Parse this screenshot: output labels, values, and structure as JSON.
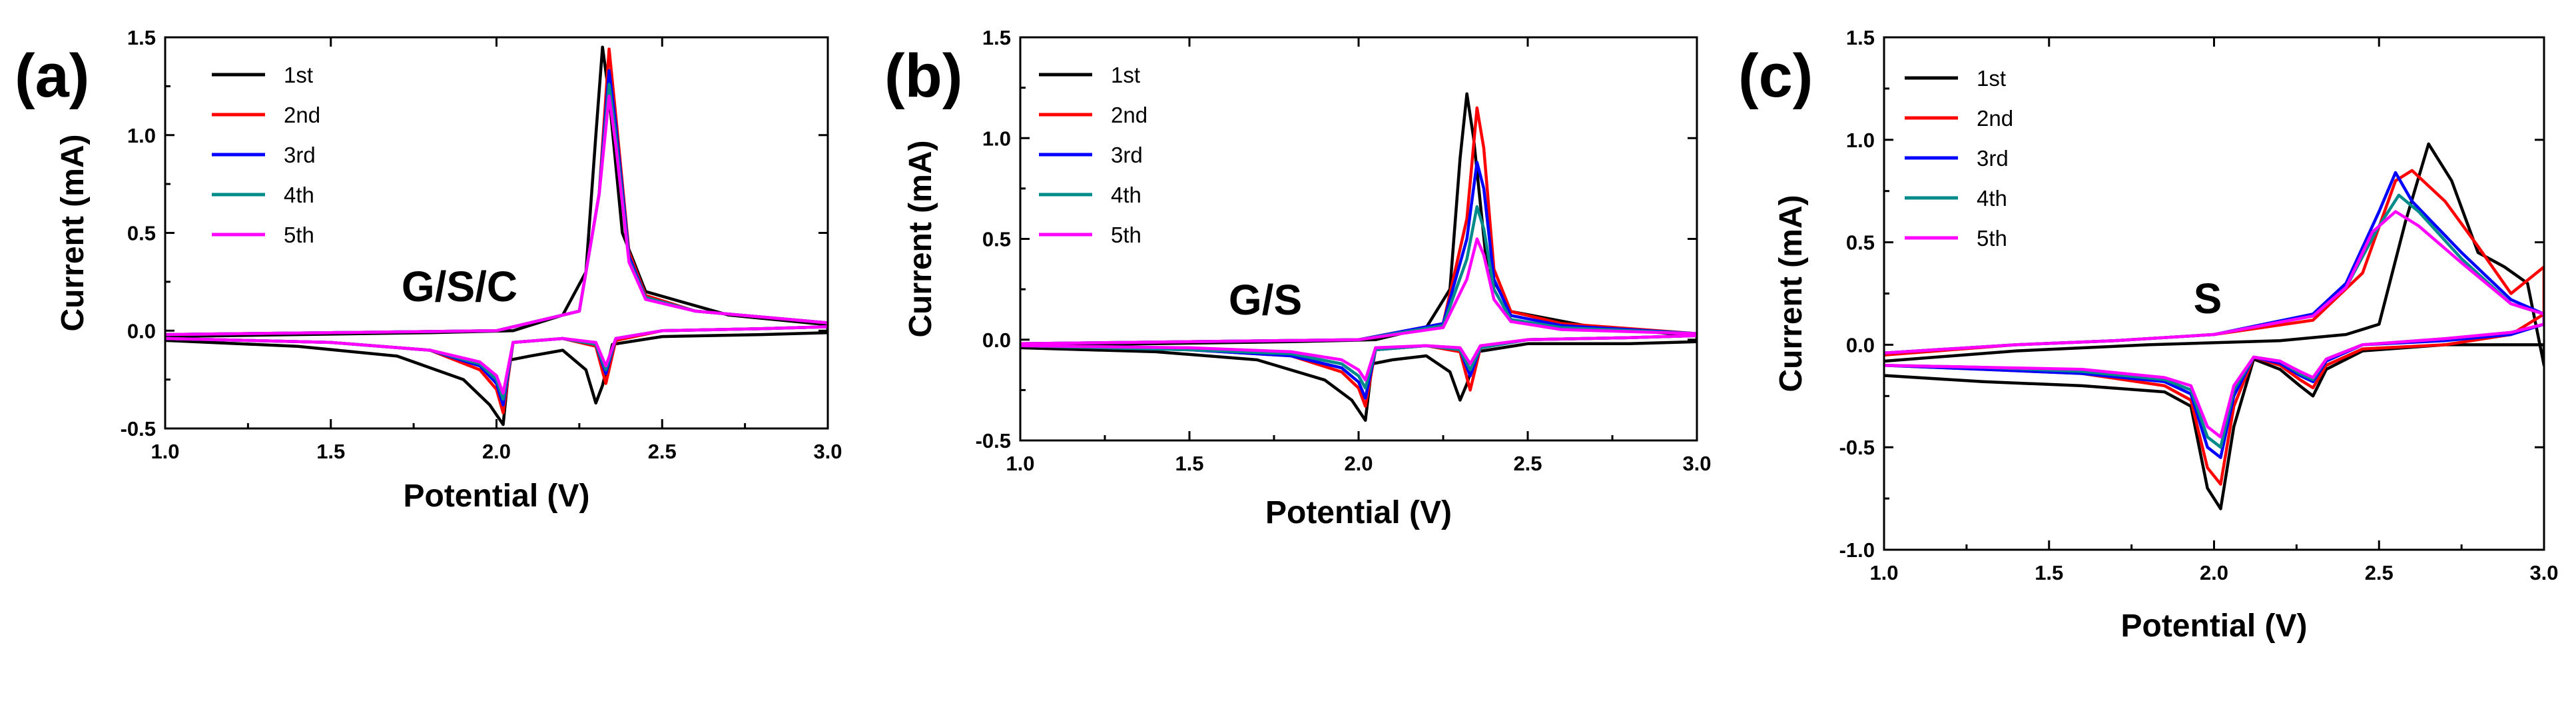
{
  "chart_data": [
    {
      "type": "line",
      "panel_label": "(a)",
      "inset_label": "G/S/C",
      "xlabel": "Potential (V)",
      "ylabel": "Current (mA)",
      "xlim": [
        1.0,
        3.0
      ],
      "ylim": [
        -0.5,
        1.5
      ],
      "xticks": [
        "1.0",
        "1.5",
        "2.0",
        "2.5",
        "3.0"
      ],
      "yticks": [
        "-0.5",
        "0.0",
        "0.5",
        "1.0",
        "1.5"
      ],
      "legend": [
        "1st",
        "2nd",
        "3rd",
        "4th",
        "5th"
      ],
      "legend_position": "top-left",
      "series": [
        {
          "name": "1st",
          "color": "#000000",
          "x": [
            1.0,
            1.4,
            1.7,
            1.9,
            1.98,
            2.02,
            2.04,
            2.1,
            2.2,
            2.27,
            2.3,
            2.32,
            2.35,
            2.5,
            2.8,
            3.0,
            3.0,
            2.7,
            2.45,
            2.38,
            2.34,
            2.32,
            2.3,
            2.27,
            2.2,
            2.05,
            1.8,
            1.4,
            1.0
          ],
          "y": [
            -0.05,
            -0.08,
            -0.13,
            -0.25,
            -0.38,
            -0.48,
            -0.15,
            -0.13,
            -0.1,
            -0.2,
            -0.37,
            -0.28,
            -0.07,
            -0.03,
            -0.02,
            -0.01,
            0.03,
            0.08,
            0.2,
            0.5,
            1.2,
            1.45,
            1.0,
            0.3,
            0.08,
            0.0,
            -0.01,
            -0.02,
            -0.03
          ]
        },
        {
          "name": "2nd",
          "color": "#ff0000",
          "x": [
            1.0,
            1.5,
            1.8,
            1.95,
            2.0,
            2.02,
            2.05,
            2.2,
            2.3,
            2.33,
            2.36,
            2.5,
            2.8,
            3.0,
            3.0,
            2.6,
            2.45,
            2.4,
            2.36,
            2.34,
            2.31,
            2.25,
            2.0,
            1.5,
            1.0
          ],
          "y": [
            -0.04,
            -0.06,
            -0.1,
            -0.2,
            -0.3,
            -0.42,
            -0.06,
            -0.04,
            -0.08,
            -0.27,
            -0.05,
            0.0,
            0.01,
            0.02,
            0.04,
            0.1,
            0.18,
            0.4,
            1.1,
            1.44,
            0.7,
            0.1,
            0.0,
            -0.01,
            -0.02
          ]
        },
        {
          "name": "3rd",
          "color": "#0000ff",
          "x": [
            1.0,
            1.5,
            1.8,
            1.95,
            2.0,
            2.02,
            2.05,
            2.2,
            2.3,
            2.33,
            2.36,
            2.5,
            2.8,
            3.0,
            3.0,
            2.6,
            2.45,
            2.4,
            2.36,
            2.34,
            2.31,
            2.25,
            2.0,
            1.5,
            1.0
          ],
          "y": [
            -0.04,
            -0.06,
            -0.1,
            -0.18,
            -0.27,
            -0.38,
            -0.06,
            -0.04,
            -0.07,
            -0.22,
            -0.04,
            0.0,
            0.01,
            0.02,
            0.04,
            0.1,
            0.17,
            0.38,
            1.05,
            1.33,
            0.7,
            0.1,
            0.0,
            -0.01,
            -0.02
          ]
        },
        {
          "name": "4th",
          "color": "#008b8b",
          "x": [
            1.0,
            1.5,
            1.8,
            1.95,
            2.0,
            2.02,
            2.05,
            2.2,
            2.3,
            2.33,
            2.36,
            2.5,
            2.8,
            3.0,
            3.0,
            2.6,
            2.45,
            2.4,
            2.36,
            2.34,
            2.31,
            2.25,
            2.0,
            1.5,
            1.0
          ],
          "y": [
            -0.04,
            -0.06,
            -0.1,
            -0.17,
            -0.25,
            -0.35,
            -0.06,
            -0.04,
            -0.07,
            -0.2,
            -0.04,
            0.0,
            0.01,
            0.02,
            0.04,
            0.1,
            0.17,
            0.36,
            1.0,
            1.26,
            0.7,
            0.1,
            0.0,
            -0.01,
            -0.02
          ]
        },
        {
          "name": "5th",
          "color": "#ff00ff",
          "x": [
            1.0,
            1.5,
            1.8,
            1.95,
            2.0,
            2.02,
            2.05,
            2.2,
            2.3,
            2.33,
            2.36,
            2.5,
            2.8,
            3.0,
            3.0,
            2.6,
            2.45,
            2.4,
            2.36,
            2.34,
            2.31,
            2.25,
            2.0,
            1.5,
            1.0
          ],
          "y": [
            -0.04,
            -0.06,
            -0.1,
            -0.16,
            -0.23,
            -0.32,
            -0.06,
            -0.04,
            -0.06,
            -0.18,
            -0.04,
            0.0,
            0.01,
            0.02,
            0.04,
            0.1,
            0.16,
            0.35,
            0.95,
            1.2,
            0.7,
            0.1,
            0.0,
            -0.01,
            -0.02
          ]
        }
      ]
    },
    {
      "type": "line",
      "panel_label": "(b)",
      "inset_label": "G/S",
      "xlabel": "Potential (V)",
      "ylabel": "Current (mA)",
      "xlim": [
        1.0,
        3.0
      ],
      "ylim": [
        -0.5,
        1.5
      ],
      "xticks": [
        "1.0",
        "1.5",
        "2.0",
        "2.5",
        "3.0"
      ],
      "yticks": [
        "-0.5",
        "0.0",
        "0.5",
        "1.0",
        "1.5"
      ],
      "legend": [
        "1st",
        "2nd",
        "3rd",
        "4th",
        "5th"
      ],
      "legend_position": "top-left",
      "series": [
        {
          "name": "1st",
          "color": "#000000",
          "x": [
            1.0,
            1.4,
            1.7,
            1.9,
            1.98,
            2.02,
            2.04,
            2.1,
            2.2,
            2.27,
            2.3,
            2.32,
            2.35,
            2.5,
            2.8,
            3.0,
            3.0,
            2.7,
            2.45,
            2.38,
            2.34,
            2.32,
            2.3,
            2.27,
            2.2,
            2.05,
            1.8,
            1.4,
            1.0
          ],
          "y": [
            -0.04,
            -0.06,
            -0.1,
            -0.2,
            -0.3,
            -0.4,
            -0.12,
            -0.1,
            -0.08,
            -0.16,
            -0.3,
            -0.22,
            -0.06,
            -0.02,
            -0.02,
            -0.01,
            0.02,
            0.06,
            0.14,
            0.35,
            1.0,
            1.22,
            0.9,
            0.25,
            0.06,
            0.0,
            -0.01,
            -0.02,
            -0.03
          ]
        },
        {
          "name": "2nd",
          "color": "#ff0000",
          "x": [
            1.0,
            1.5,
            1.8,
            1.95,
            2.0,
            2.02,
            2.05,
            2.2,
            2.3,
            2.33,
            2.36,
            2.5,
            2.8,
            3.0,
            3.0,
            2.6,
            2.45,
            2.4,
            2.37,
            2.35,
            2.32,
            2.25,
            2.0,
            1.5,
            1.0
          ],
          "y": [
            -0.03,
            -0.05,
            -0.08,
            -0.16,
            -0.24,
            -0.33,
            -0.05,
            -0.03,
            -0.06,
            -0.25,
            -0.04,
            0.0,
            0.01,
            0.02,
            0.03,
            0.08,
            0.14,
            0.35,
            0.95,
            1.15,
            0.6,
            0.08,
            0.0,
            -0.01,
            -0.02
          ]
        },
        {
          "name": "3rd",
          "color": "#0000ff",
          "x": [
            1.0,
            1.5,
            1.8,
            1.95,
            2.0,
            2.02,
            2.05,
            2.2,
            2.3,
            2.33,
            2.36,
            2.5,
            2.8,
            3.0,
            3.0,
            2.6,
            2.45,
            2.4,
            2.37,
            2.35,
            2.32,
            2.25,
            2.0,
            1.5,
            1.0
          ],
          "y": [
            -0.03,
            -0.05,
            -0.08,
            -0.14,
            -0.21,
            -0.29,
            -0.05,
            -0.03,
            -0.05,
            -0.18,
            -0.04,
            0.0,
            0.01,
            0.02,
            0.03,
            0.07,
            0.12,
            0.3,
            0.75,
            0.88,
            0.5,
            0.08,
            0.0,
            -0.01,
            -0.02
          ]
        },
        {
          "name": "4th",
          "color": "#008b8b",
          "x": [
            1.0,
            1.5,
            1.8,
            1.95,
            2.0,
            2.02,
            2.05,
            2.2,
            2.3,
            2.33,
            2.36,
            2.5,
            2.8,
            3.0,
            3.0,
            2.6,
            2.45,
            2.4,
            2.37,
            2.35,
            2.32,
            2.25,
            2.0,
            1.5,
            1.0
          ],
          "y": [
            -0.03,
            -0.05,
            -0.07,
            -0.12,
            -0.18,
            -0.24,
            -0.05,
            -0.03,
            -0.05,
            -0.15,
            -0.04,
            0.0,
            0.01,
            0.02,
            0.03,
            0.06,
            0.1,
            0.25,
            0.55,
            0.66,
            0.4,
            0.07,
            0.0,
            -0.01,
            -0.02
          ]
        },
        {
          "name": "5th",
          "color": "#ff00ff",
          "x": [
            1.0,
            1.5,
            1.8,
            1.95,
            2.0,
            2.02,
            2.05,
            2.2,
            2.3,
            2.33,
            2.36,
            2.5,
            2.8,
            3.0,
            3.0,
            2.6,
            2.45,
            2.4,
            2.37,
            2.35,
            2.32,
            2.25,
            2.0,
            1.5,
            1.0
          ],
          "y": [
            -0.03,
            -0.04,
            -0.06,
            -0.1,
            -0.15,
            -0.2,
            -0.04,
            -0.03,
            -0.04,
            -0.12,
            -0.03,
            0.0,
            0.01,
            0.02,
            0.03,
            0.05,
            0.09,
            0.2,
            0.42,
            0.5,
            0.3,
            0.06,
            0.0,
            -0.01,
            -0.02
          ]
        }
      ]
    },
    {
      "type": "line",
      "panel_label": "(c)",
      "inset_label": "S",
      "xlabel": "Potential (V)",
      "ylabel": "Current (mA)",
      "xlim": [
        1.0,
        3.0
      ],
      "ylim": [
        -1.0,
        1.5
      ],
      "xticks": [
        "1.0",
        "1.5",
        "2.0",
        "2.5",
        "3.0"
      ],
      "yticks": [
        "-1.0",
        "-0.5",
        "0.0",
        "0.5",
        "1.0",
        "1.5"
      ],
      "legend": [
        "1st",
        "2nd",
        "3rd",
        "4th",
        "5th"
      ],
      "legend_position": "top-left",
      "series": [
        {
          "name": "1st",
          "color": "#000000",
          "x": [
            1.0,
            1.3,
            1.6,
            1.85,
            1.93,
            1.98,
            2.02,
            2.06,
            2.12,
            2.2,
            2.26,
            2.3,
            2.34,
            2.45,
            2.7,
            3.0,
            3.0,
            2.95,
            2.88,
            2.8,
            2.72,
            2.65,
            2.58,
            2.5,
            2.4,
            2.2,
            1.8,
            1.4,
            1.0
          ],
          "y": [
            -0.15,
            -0.18,
            -0.2,
            -0.23,
            -0.3,
            -0.7,
            -0.8,
            -0.4,
            -0.07,
            -0.12,
            -0.2,
            -0.25,
            -0.12,
            -0.03,
            0.0,
            0.0,
            -0.1,
            0.3,
            0.38,
            0.45,
            0.8,
            0.98,
            0.6,
            0.1,
            0.05,
            0.02,
            0.0,
            -0.03,
            -0.08
          ]
        },
        {
          "name": "2nd",
          "color": "#ff0000",
          "x": [
            1.0,
            1.3,
            1.6,
            1.85,
            1.93,
            1.98,
            2.02,
            2.06,
            2.12,
            2.2,
            2.26,
            2.3,
            2.34,
            2.45,
            2.7,
            2.9,
            3.0,
            3.0,
            2.9,
            2.8,
            2.7,
            2.6,
            2.55,
            2.45,
            2.3,
            2.0,
            1.7,
            1.4,
            1.0
          ],
          "y": [
            -0.1,
            -0.12,
            -0.14,
            -0.2,
            -0.27,
            -0.6,
            -0.68,
            -0.3,
            -0.06,
            -0.1,
            -0.17,
            -0.21,
            -0.1,
            -0.02,
            0.0,
            0.05,
            0.15,
            0.38,
            0.25,
            0.48,
            0.7,
            0.85,
            0.8,
            0.35,
            0.12,
            0.05,
            0.02,
            0.0,
            -0.05
          ]
        },
        {
          "name": "3rd",
          "color": "#0000ff",
          "x": [
            1.0,
            1.3,
            1.6,
            1.85,
            1.93,
            1.98,
            2.02,
            2.06,
            2.12,
            2.2,
            2.26,
            2.3,
            2.34,
            2.45,
            2.7,
            2.9,
            3.0,
            3.0,
            2.9,
            2.75,
            2.6,
            2.55,
            2.5,
            2.4,
            2.3,
            2.0,
            1.7,
            1.4,
            1.0
          ],
          "y": [
            -0.1,
            -0.12,
            -0.14,
            -0.18,
            -0.24,
            -0.5,
            -0.55,
            -0.25,
            -0.06,
            -0.09,
            -0.15,
            -0.18,
            -0.08,
            0.0,
            0.02,
            0.05,
            0.1,
            0.15,
            0.22,
            0.45,
            0.7,
            0.84,
            0.65,
            0.3,
            0.15,
            0.05,
            0.02,
            0.0,
            -0.04
          ]
        },
        {
          "name": "4th",
          "color": "#008b8b",
          "x": [
            1.0,
            1.3,
            1.6,
            1.85,
            1.93,
            1.98,
            2.02,
            2.06,
            2.12,
            2.2,
            2.26,
            2.3,
            2.34,
            2.45,
            2.7,
            2.9,
            3.0,
            3.0,
            2.9,
            2.75,
            2.62,
            2.56,
            2.5,
            2.4,
            2.3,
            2.0,
            1.7,
            1.4,
            1.0
          ],
          "y": [
            -0.1,
            -0.11,
            -0.13,
            -0.17,
            -0.22,
            -0.45,
            -0.5,
            -0.22,
            -0.06,
            -0.08,
            -0.14,
            -0.17,
            -0.07,
            0.0,
            0.03,
            0.06,
            0.1,
            0.15,
            0.2,
            0.42,
            0.65,
            0.73,
            0.58,
            0.28,
            0.14,
            0.05,
            0.02,
            0.0,
            -0.04
          ]
        },
        {
          "name": "5th",
          "color": "#ff00ff",
          "x": [
            1.0,
            1.3,
            1.6,
            1.85,
            1.93,
            1.98,
            2.02,
            2.06,
            2.12,
            2.2,
            2.26,
            2.3,
            2.34,
            2.45,
            2.7,
            2.9,
            3.0,
            3.0,
            2.9,
            2.75,
            2.62,
            2.55,
            2.48,
            2.4,
            2.3,
            2.0,
            1.7,
            1.4,
            1.0
          ],
          "y": [
            -0.1,
            -0.11,
            -0.12,
            -0.16,
            -0.2,
            -0.4,
            -0.45,
            -0.2,
            -0.06,
            -0.08,
            -0.13,
            -0.16,
            -0.07,
            0.0,
            0.03,
            0.06,
            0.1,
            0.15,
            0.2,
            0.4,
            0.58,
            0.65,
            0.55,
            0.28,
            0.14,
            0.05,
            0.02,
            0.0,
            -0.04
          ]
        }
      ]
    }
  ]
}
